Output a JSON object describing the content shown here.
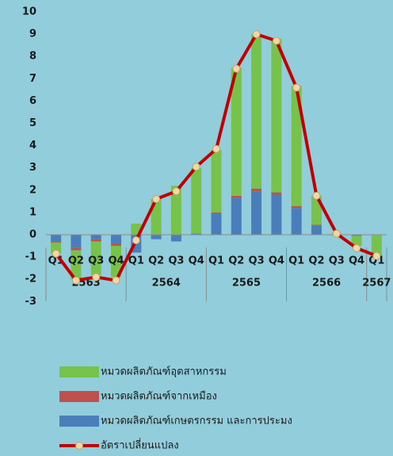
{
  "chart_data": {
    "type": "stacked_bar_line",
    "categories": [
      "Q1",
      "Q2",
      "Q3",
      "Q4",
      "Q1",
      "Q2",
      "Q3",
      "Q4",
      "Q1",
      "Q2",
      "Q3",
      "Q4",
      "Q1",
      "Q2",
      "Q3",
      "Q4",
      "Q1"
    ],
    "category_groups": [
      "2563",
      null,
      null,
      null,
      "2564",
      null,
      null,
      null,
      "2565",
      null,
      null,
      null,
      "2566",
      null,
      null,
      null,
      "2567"
    ],
    "series": [
      {
        "name": "หมวดผลิตภัณฑ์อุตสาหกรรม",
        "color": "#76c24b",
        "stack": true,
        "values": [
          -0.5,
          -1.3,
          -1.5,
          -1.4,
          0.5,
          1.6,
          2.2,
          2.95,
          2.8,
          5.75,
          6.93,
          6.9,
          5.4,
          1.3,
          0.03,
          -0.45,
          -0.95
        ]
      },
      {
        "name": "หมวดผลิตภัณฑ์จากเหมือง",
        "color": "#c0504d",
        "stack": true,
        "values": [
          -0.05,
          -0.1,
          -0.1,
          -0.1,
          0,
          0,
          0,
          0,
          0.05,
          0.1,
          0.12,
          0.1,
          0.08,
          0.05,
          0,
          0,
          0
        ]
      },
      {
        "name": "หมวดผลิตภัณฑ์เกษตรกรรม และการประมง",
        "color": "#4a7ebb",
        "stack": true,
        "values": [
          -0.3,
          -0.6,
          -0.2,
          -0.4,
          -0.8,
          -0.2,
          -0.3,
          0.05,
          0.95,
          1.65,
          1.95,
          1.8,
          1.2,
          0.4,
          0.02,
          -0.05,
          0
        ]
      },
      {
        "name": "อัตราเปลี่ยนแปลง",
        "color": "#c00000",
        "stack": false,
        "values": [
          -0.85,
          -2.05,
          -1.9,
          -2.05,
          -0.25,
          1.6,
          1.95,
          3.05,
          3.85,
          7.45,
          9.0,
          8.7,
          6.6,
          1.75,
          0.05,
          -0.6,
          -0.95
        ]
      }
    ],
    "ylim": [
      -3,
      10
    ],
    "yticks": [
      -3,
      -2,
      -1,
      0,
      1,
      2,
      3,
      4,
      5,
      6,
      7,
      8,
      9,
      10
    ],
    "grid": false,
    "legend": "bottom"
  }
}
